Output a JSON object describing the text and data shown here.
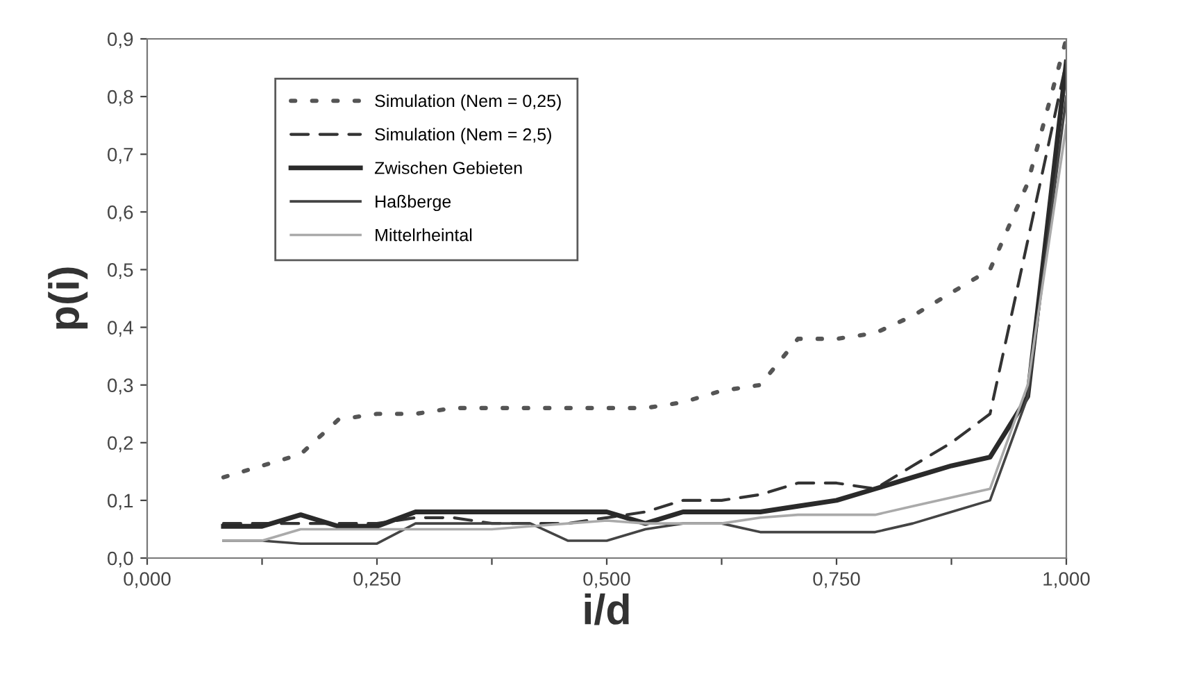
{
  "chart_data": {
    "type": "line",
    "xlabel": "i/d",
    "ylabel": "p(i)",
    "x": [
      0.083,
      0.125,
      0.167,
      0.208,
      0.25,
      0.292,
      0.333,
      0.375,
      0.417,
      0.458,
      0.5,
      0.542,
      0.583,
      0.625,
      0.667,
      0.708,
      0.75,
      0.792,
      0.833,
      0.875,
      0.917,
      0.958,
      1.0
    ],
    "series": [
      {
        "name": "Simulation (Nem = 0,25)",
        "color": "#555555",
        "line_style": "dotted",
        "values": [
          0.14,
          0.16,
          0.18,
          0.24,
          0.25,
          0.25,
          0.26,
          0.26,
          0.26,
          0.26,
          0.26,
          0.26,
          0.27,
          0.29,
          0.3,
          0.38,
          0.38,
          0.39,
          0.42,
          0.46,
          0.5,
          0.65,
          0.9
        ]
      },
      {
        "name": "Simulation (Nem = 2,5)",
        "color": "#333333",
        "line_style": "dashed",
        "values": [
          0.06,
          0.06,
          0.06,
          0.06,
          0.06,
          0.07,
          0.07,
          0.06,
          0.06,
          0.06,
          0.07,
          0.08,
          0.1,
          0.1,
          0.11,
          0.13,
          0.13,
          0.12,
          0.16,
          0.2,
          0.25,
          0.55,
          0.86
        ]
      },
      {
        "name": "Zwischen Gebieten",
        "color": "#2a2a2a",
        "line_style": "solid",
        "values": [
          0.055,
          0.055,
          0.075,
          0.055,
          0.055,
          0.08,
          0.08,
          0.08,
          0.08,
          0.08,
          0.08,
          0.06,
          0.08,
          0.08,
          0.08,
          0.09,
          0.1,
          0.12,
          0.14,
          0.16,
          0.175,
          0.28,
          0.86
        ]
      },
      {
        "name": "Haßberge",
        "color": "#444444",
        "line_style": "solid",
        "values": [
          0.03,
          0.03,
          0.025,
          0.025,
          0.025,
          0.06,
          0.06,
          0.06,
          0.06,
          0.03,
          0.03,
          0.05,
          0.06,
          0.06,
          0.045,
          0.045,
          0.045,
          0.045,
          0.06,
          0.08,
          0.1,
          0.28,
          0.8
        ]
      },
      {
        "name": "Mittelrheintal",
        "color": "#aaaaaa",
        "line_style": "solid",
        "values": [
          0.03,
          0.03,
          0.05,
          0.05,
          0.05,
          0.05,
          0.05,
          0.05,
          0.055,
          0.06,
          0.065,
          0.06,
          0.06,
          0.06,
          0.07,
          0.075,
          0.075,
          0.075,
          0.09,
          0.105,
          0.12,
          0.3,
          0.75
        ]
      }
    ],
    "xlim": [
      0,
      1
    ],
    "ylim": [
      0,
      0.9
    ],
    "xticks": [
      {
        "value": 0,
        "label": "0,000"
      },
      {
        "value": 0.125,
        "label": null
      },
      {
        "value": 0.25,
        "label": "0,250"
      },
      {
        "value": 0.375,
        "label": null
      },
      {
        "value": 0.5,
        "label": "0,500"
      },
      {
        "value": 0.625,
        "label": null
      },
      {
        "value": 0.75,
        "label": "0,750"
      },
      {
        "value": 0.875,
        "label": null
      },
      {
        "value": 1,
        "label": "1,000"
      }
    ],
    "yticks": [
      {
        "value": 0,
        "label": "0,0"
      },
      {
        "value": 0.1,
        "label": "0,1"
      },
      {
        "value": 0.2,
        "label": "0,2"
      },
      {
        "value": 0.3,
        "label": "0,3"
      },
      {
        "value": 0.4,
        "label": "0,4"
      },
      {
        "value": 0.5,
        "label": "0,5"
      },
      {
        "value": 0.6,
        "label": "0,6"
      },
      {
        "value": 0.7,
        "label": "0,7"
      },
      {
        "value": 0.8,
        "label": "0,8"
      },
      {
        "value": 0.9,
        "label": "0,9"
      }
    ],
    "grid": false,
    "legend": "top left",
    "marker": "none"
  }
}
